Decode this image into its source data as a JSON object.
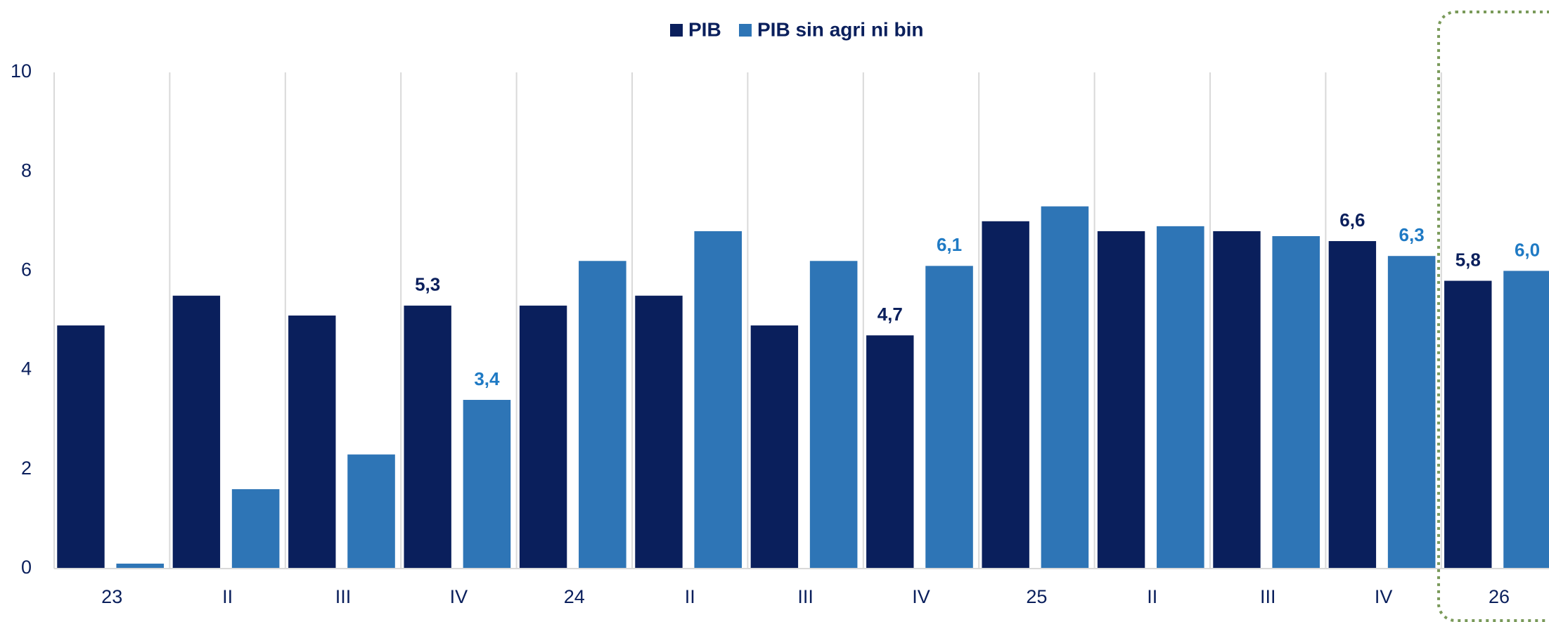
{
  "chart_data": {
    "type": "bar",
    "categories": [
      "23",
      "II",
      "III",
      "IV",
      "24",
      "II",
      "III",
      "IV",
      "25",
      "II",
      "III",
      "IV",
      "26"
    ],
    "series": [
      {
        "name": "PIB",
        "color": "#0a1f5c",
        "values": [
          4.9,
          5.5,
          5.1,
          5.3,
          5.3,
          5.5,
          4.9,
          4.7,
          7.0,
          6.8,
          6.8,
          6.6,
          5.8
        ],
        "value_labels": [
          null,
          null,
          null,
          "5,3",
          null,
          null,
          null,
          "4,7",
          null,
          null,
          null,
          "6,6",
          "5,8"
        ]
      },
      {
        "name": "PIB sin agri ni bin",
        "color": "#2e75b6",
        "values": [
          0.1,
          1.6,
          2.3,
          3.4,
          6.2,
          6.8,
          6.2,
          6.1,
          7.3,
          6.9,
          6.7,
          6.3,
          6.0
        ],
        "value_labels": [
          null,
          null,
          null,
          "3,4",
          null,
          null,
          null,
          "6,1",
          null,
          null,
          null,
          "6,3",
          "6,0"
        ]
      }
    ],
    "ylim": [
      0,
      10
    ],
    "yticks": [
      0,
      2,
      4,
      6,
      8,
      10
    ],
    "legend": "top"
  }
}
